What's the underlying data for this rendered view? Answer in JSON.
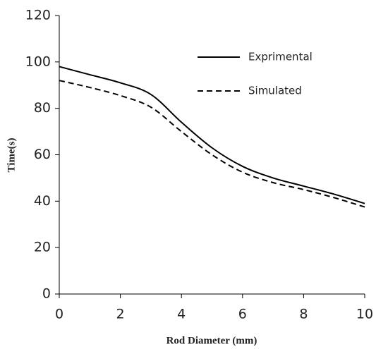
{
  "chart_data": {
    "type": "line",
    "x_label": "Rod Diameter (mm)",
    "y_label": "Time(s)",
    "x": [
      0,
      1,
      2,
      3,
      4,
      5,
      6,
      7,
      8,
      9,
      10
    ],
    "series": [
      {
        "name": "Exprimental",
        "color": "#000000",
        "linestyle": "solid",
        "values": [
          98,
          94.5,
          91,
          86,
          74,
          63,
          55,
          50,
          46.5,
          43,
          39
        ]
      },
      {
        "name": "Simulated",
        "color": "#000000",
        "linestyle": "dashed",
        "values": [
          92,
          89,
          85.5,
          80.5,
          70,
          60,
          52.5,
          48,
          45,
          41.5,
          37.5
        ]
      }
    ],
    "xlim": [
      0,
      10
    ],
    "xticks": [
      0,
      2,
      4,
      6,
      8,
      10
    ],
    "ylim": [
      0,
      120
    ],
    "yticks": [
      0,
      20,
      40,
      60,
      80,
      100,
      120
    ],
    "grid": false,
    "legend_position": "upper-right"
  }
}
